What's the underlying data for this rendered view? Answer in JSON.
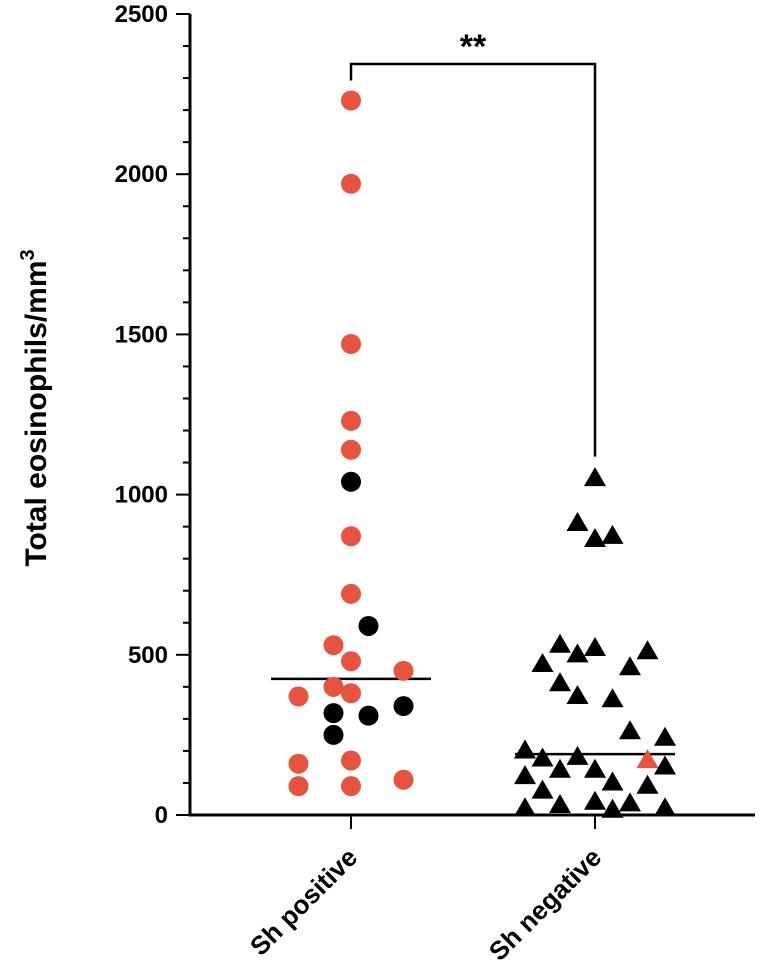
{
  "chart_data": {
    "type": "scatter",
    "ylabel": "Total eosinophils/mm",
    "ylabel_sup": "3",
    "ylim": [
      0,
      2500
    ],
    "yticks": [
      0,
      500,
      1000,
      1500,
      2000,
      2500
    ],
    "ytick_labels": [
      "0",
      "500",
      "1000",
      "1500",
      "2000",
      "2500"
    ],
    "minor_tick_step": 100,
    "categories": [
      "Sh positive",
      "Sh negative"
    ],
    "colors": {
      "red": "#e8533f",
      "black": "#000000"
    },
    "series": [
      {
        "category": "Sh positive",
        "marker": "circle",
        "median": 425,
        "points": [
          {
            "offset": 0,
            "y": 2230,
            "color": "red"
          },
          {
            "offset": 0,
            "y": 1970,
            "color": "red"
          },
          {
            "offset": 0,
            "y": 1470,
            "color": "red"
          },
          {
            "offset": 0,
            "y": 1230,
            "color": "red"
          },
          {
            "offset": 0,
            "y": 1140,
            "color": "red"
          },
          {
            "offset": 0,
            "y": 1040,
            "color": "black"
          },
          {
            "offset": 0,
            "y": 870,
            "color": "red"
          },
          {
            "offset": 0,
            "y": 690,
            "color": "red"
          },
          {
            "offset": 0.5,
            "y": 590,
            "color": "black"
          },
          {
            "offset": -0.5,
            "y": 530,
            "color": "red"
          },
          {
            "offset": 0,
            "y": 480,
            "color": "red"
          },
          {
            "offset": 1.5,
            "y": 450,
            "color": "red"
          },
          {
            "offset": -0.5,
            "y": 400,
            "color": "red"
          },
          {
            "offset": 0,
            "y": 380,
            "color": "red"
          },
          {
            "offset": -1.5,
            "y": 370,
            "color": "red"
          },
          {
            "offset": 1.5,
            "y": 340,
            "color": "black"
          },
          {
            "offset": -0.5,
            "y": 318,
            "color": "black"
          },
          {
            "offset": 0.5,
            "y": 310,
            "color": "black"
          },
          {
            "offset": -0.5,
            "y": 250,
            "color": "black"
          },
          {
            "offset": 0,
            "y": 170,
            "color": "red"
          },
          {
            "offset": -1.5,
            "y": 160,
            "color": "red"
          },
          {
            "offset": 1.5,
            "y": 110,
            "color": "red"
          },
          {
            "offset": -1.5,
            "y": 90,
            "color": "red"
          },
          {
            "offset": 0,
            "y": 90,
            "color": "red"
          }
        ]
      },
      {
        "category": "Sh negative",
        "marker": "triangle",
        "median": 190,
        "points": [
          {
            "offset": 0,
            "y": 1050,
            "color": "black"
          },
          {
            "offset": -0.5,
            "y": 910,
            "color": "black"
          },
          {
            "offset": 0,
            "y": 860,
            "color": "black"
          },
          {
            "offset": 0.5,
            "y": 870,
            "color": "black"
          },
          {
            "offset": -1,
            "y": 530,
            "color": "black"
          },
          {
            "offset": -0.5,
            "y": 500,
            "color": "black"
          },
          {
            "offset": 0,
            "y": 520,
            "color": "black"
          },
          {
            "offset": 1.5,
            "y": 510,
            "color": "black"
          },
          {
            "offset": -1.5,
            "y": 470,
            "color": "black"
          },
          {
            "offset": 1,
            "y": 460,
            "color": "black"
          },
          {
            "offset": -1,
            "y": 410,
            "color": "black"
          },
          {
            "offset": -0.5,
            "y": 370,
            "color": "black"
          },
          {
            "offset": 0.5,
            "y": 360,
            "color": "black"
          },
          {
            "offset": 1,
            "y": 260,
            "color": "black"
          },
          {
            "offset": 2,
            "y": 240,
            "color": "black"
          },
          {
            "offset": -2,
            "y": 200,
            "color": "black"
          },
          {
            "offset": -1.5,
            "y": 175,
            "color": "black"
          },
          {
            "offset": -0.5,
            "y": 180,
            "color": "black"
          },
          {
            "offset": 1.5,
            "y": 170,
            "color": "red"
          },
          {
            "offset": -2,
            "y": 120,
            "color": "black"
          },
          {
            "offset": -1,
            "y": 140,
            "color": "black"
          },
          {
            "offset": 0,
            "y": 140,
            "color": "black"
          },
          {
            "offset": 2,
            "y": 150,
            "color": "black"
          },
          {
            "offset": 0.5,
            "y": 100,
            "color": "black"
          },
          {
            "offset": 1.5,
            "y": 90,
            "color": "black"
          },
          {
            "offset": -1.5,
            "y": 75,
            "color": "black"
          },
          {
            "offset": -1,
            "y": 30,
            "color": "black"
          },
          {
            "offset": 0,
            "y": 40,
            "color": "black"
          },
          {
            "offset": 1,
            "y": 35,
            "color": "black"
          },
          {
            "offset": -2,
            "y": 20,
            "color": "black"
          },
          {
            "offset": 0.5,
            "y": 15,
            "color": "black"
          },
          {
            "offset": 2,
            "y": 20,
            "color": "black"
          }
        ]
      }
    ],
    "significance": {
      "label": "**",
      "between": [
        "Sh positive",
        "Sh negative"
      ]
    }
  }
}
